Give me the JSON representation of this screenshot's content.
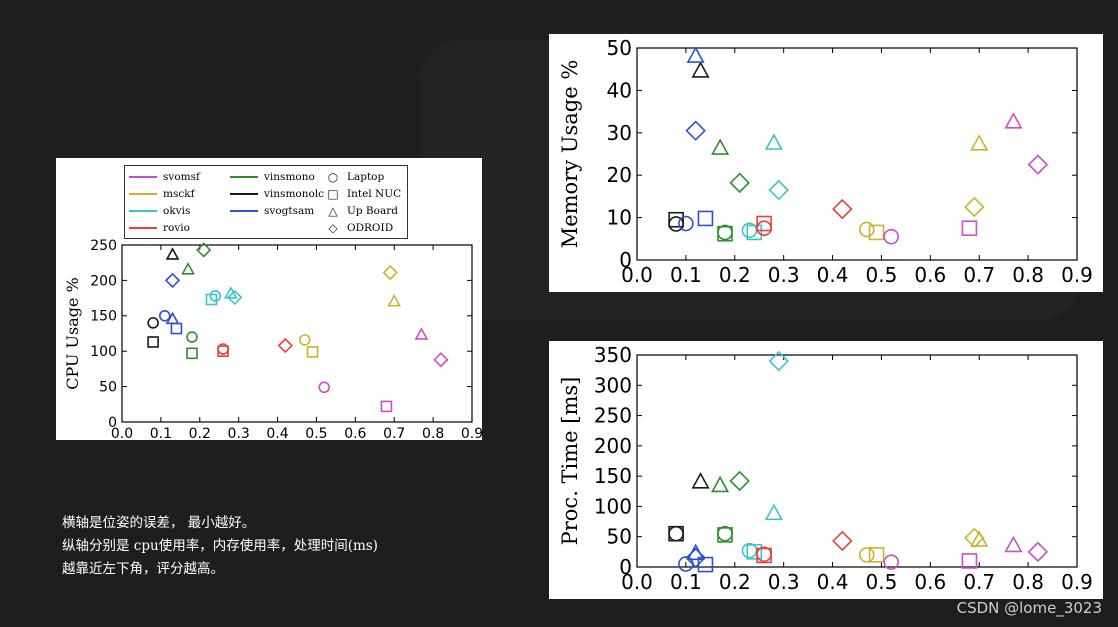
{
  "caption": {
    "line1": "横轴是位姿的误差， 最小越好。",
    "line2": "纵轴分别是 cpu使用率，内存使用率，处理时间(ms)",
    "line3": "越靠近左下角，评分越高。"
  },
  "watermark": "CSDN @lome_3023",
  "legend": {
    "algorithms": [
      {
        "name": "svomsf",
        "color": "#c94fc9"
      },
      {
        "name": "msckf",
        "color": "#c8b42e"
      },
      {
        "name": "okvis",
        "color": "#3cc3c9"
      },
      {
        "name": "rovio",
        "color": "#e6413a"
      },
      {
        "name": "vinsmono",
        "color": "#2e8f2e"
      },
      {
        "name": "vinsmonolc",
        "color": "#1a1a1a"
      },
      {
        "name": "svogtsam",
        "color": "#2f4fd1"
      }
    ],
    "platforms": [
      {
        "name": "Laptop",
        "marker": "circle",
        "symbol": "○"
      },
      {
        "name": "Intel NUC",
        "marker": "square",
        "symbol": "□"
      },
      {
        "name": "Up Board",
        "marker": "triangle",
        "symbol": "△"
      },
      {
        "name": "ODROID",
        "marker": "diamond",
        "symbol": "◇"
      }
    ]
  },
  "chart_data": [
    {
      "type": "scatter",
      "ylabel": "CPU Usage %",
      "xlim": [
        0.0,
        0.9
      ],
      "ylim": [
        0,
        250
      ],
      "xticks": [
        "0.0",
        "0.1",
        "0.2",
        "0.3",
        "0.4",
        "0.5",
        "0.6",
        "0.7",
        "0.8",
        "0.9"
      ],
      "yticks": [
        "0",
        "50",
        "100",
        "150",
        "200",
        "250"
      ],
      "points": [
        {
          "alg": "vinsmonolc",
          "platform": "circle",
          "x": 0.08,
          "y": 140
        },
        {
          "alg": "vinsmonolc",
          "platform": "square",
          "x": 0.08,
          "y": 113
        },
        {
          "alg": "vinsmonolc",
          "platform": "triangle",
          "x": 0.13,
          "y": 236
        },
        {
          "alg": "svogtsam",
          "platform": "circle",
          "x": 0.11,
          "y": 150
        },
        {
          "alg": "svogtsam",
          "platform": "triangle",
          "x": 0.13,
          "y": 145
        },
        {
          "alg": "svogtsam",
          "platform": "square",
          "x": 0.14,
          "y": 132
        },
        {
          "alg": "svogtsam",
          "platform": "diamond",
          "x": 0.13,
          "y": 200
        },
        {
          "alg": "vinsmono",
          "platform": "triangle",
          "x": 0.17,
          "y": 215
        },
        {
          "alg": "vinsmono",
          "platform": "circle",
          "x": 0.18,
          "y": 120
        },
        {
          "alg": "vinsmono",
          "platform": "square",
          "x": 0.18,
          "y": 97
        },
        {
          "alg": "vinsmono",
          "platform": "diamond",
          "x": 0.21,
          "y": 243
        },
        {
          "alg": "okvis",
          "platform": "square",
          "x": 0.23,
          "y": 173
        },
        {
          "alg": "okvis",
          "platform": "circle",
          "x": 0.24,
          "y": 178
        },
        {
          "alg": "okvis",
          "platform": "triangle",
          "x": 0.28,
          "y": 181
        },
        {
          "alg": "okvis",
          "platform": "diamond",
          "x": 0.29,
          "y": 176
        },
        {
          "alg": "rovio",
          "platform": "circle",
          "x": 0.26,
          "y": 103
        },
        {
          "alg": "rovio",
          "platform": "square",
          "x": 0.26,
          "y": 100
        },
        {
          "alg": "rovio",
          "platform": "diamond",
          "x": 0.42,
          "y": 108
        },
        {
          "alg": "msckf",
          "platform": "circle",
          "x": 0.47,
          "y": 116
        },
        {
          "alg": "msckf",
          "platform": "square",
          "x": 0.49,
          "y": 99
        },
        {
          "alg": "msckf",
          "platform": "diamond",
          "x": 0.69,
          "y": 211
        },
        {
          "alg": "msckf",
          "platform": "triangle",
          "x": 0.7,
          "y": 170
        },
        {
          "alg": "svomsf",
          "platform": "circle",
          "x": 0.52,
          "y": 49
        },
        {
          "alg": "svomsf",
          "platform": "square",
          "x": 0.68,
          "y": 22
        },
        {
          "alg": "svomsf",
          "platform": "triangle",
          "x": 0.77,
          "y": 123
        },
        {
          "alg": "svomsf",
          "platform": "diamond",
          "x": 0.82,
          "y": 88
        }
      ]
    },
    {
      "type": "scatter",
      "ylabel": "Memory Usage %",
      "xlim": [
        0.0,
        0.9
      ],
      "ylim": [
        0,
        50
      ],
      "xticks": [
        "0.0",
        "0.1",
        "0.2",
        "0.3",
        "0.4",
        "0.5",
        "0.6",
        "0.7",
        "0.8",
        "0.9"
      ],
      "yticks": [
        "0",
        "10",
        "20",
        "30",
        "40",
        "50"
      ],
      "points": [
        {
          "alg": "vinsmonolc",
          "platform": "square",
          "x": 0.08,
          "y": 9.5
        },
        {
          "alg": "vinsmonolc",
          "platform": "circle",
          "x": 0.08,
          "y": 8.5
        },
        {
          "alg": "vinsmonolc",
          "platform": "triangle",
          "x": 0.13,
          "y": 44.5
        },
        {
          "alg": "svogtsam",
          "platform": "circle",
          "x": 0.1,
          "y": 8.6
        },
        {
          "alg": "svogtsam",
          "platform": "triangle",
          "x": 0.12,
          "y": 48
        },
        {
          "alg": "svogtsam",
          "platform": "diamond",
          "x": 0.12,
          "y": 30.5
        },
        {
          "alg": "svogtsam",
          "platform": "square",
          "x": 0.14,
          "y": 9.8
        },
        {
          "alg": "vinsmono",
          "platform": "triangle",
          "x": 0.17,
          "y": 26.3
        },
        {
          "alg": "vinsmono",
          "platform": "circle",
          "x": 0.18,
          "y": 6.5
        },
        {
          "alg": "vinsmono",
          "platform": "square",
          "x": 0.18,
          "y": 6.2
        },
        {
          "alg": "vinsmono",
          "platform": "diamond",
          "x": 0.21,
          "y": 18.2
        },
        {
          "alg": "okvis",
          "platform": "circle",
          "x": 0.23,
          "y": 7.0
        },
        {
          "alg": "okvis",
          "platform": "square",
          "x": 0.24,
          "y": 6.5
        },
        {
          "alg": "okvis",
          "platform": "triangle",
          "x": 0.28,
          "y": 27.5
        },
        {
          "alg": "okvis",
          "platform": "diamond",
          "x": 0.29,
          "y": 16.5
        },
        {
          "alg": "rovio",
          "platform": "square",
          "x": 0.26,
          "y": 8.6
        },
        {
          "alg": "rovio",
          "platform": "circle",
          "x": 0.26,
          "y": 7.5
        },
        {
          "alg": "rovio",
          "platform": "diamond",
          "x": 0.42,
          "y": 12.0
        },
        {
          "alg": "msckf",
          "platform": "circle",
          "x": 0.47,
          "y": 7.2
        },
        {
          "alg": "msckf",
          "platform": "square",
          "x": 0.49,
          "y": 6.5
        },
        {
          "alg": "msckf",
          "platform": "diamond",
          "x": 0.69,
          "y": 12.5
        },
        {
          "alg": "msckf",
          "platform": "triangle",
          "x": 0.7,
          "y": 27.3
        },
        {
          "alg": "svomsf",
          "platform": "circle",
          "x": 0.52,
          "y": 5.5
        },
        {
          "alg": "svomsf",
          "platform": "square",
          "x": 0.68,
          "y": 7.5
        },
        {
          "alg": "svomsf",
          "platform": "triangle",
          "x": 0.77,
          "y": 32.5
        },
        {
          "alg": "svomsf",
          "platform": "diamond",
          "x": 0.82,
          "y": 22.5
        }
      ]
    },
    {
      "type": "scatter",
      "ylabel": "Proc. Time [ms]",
      "xlim": [
        0.0,
        0.9
      ],
      "ylim": [
        0,
        350
      ],
      "xticks": [
        "0.0",
        "0.1",
        "0.2",
        "0.3",
        "0.4",
        "0.5",
        "0.6",
        "0.7",
        "0.8",
        "0.9"
      ],
      "yticks": [
        "0",
        "50",
        "100",
        "150",
        "200",
        "250",
        "300",
        "350"
      ],
      "points": [
        {
          "alg": "vinsmonolc",
          "platform": "circle",
          "x": 0.08,
          "y": 55
        },
        {
          "alg": "vinsmonolc",
          "platform": "square",
          "x": 0.08,
          "y": 55
        },
        {
          "alg": "vinsmonolc",
          "platform": "triangle",
          "x": 0.13,
          "y": 140
        },
        {
          "alg": "svogtsam",
          "platform": "circle",
          "x": 0.1,
          "y": 5
        },
        {
          "alg": "svogtsam",
          "platform": "triangle",
          "x": 0.12,
          "y": 22
        },
        {
          "alg": "svogtsam",
          "platform": "diamond",
          "x": 0.12,
          "y": 15
        },
        {
          "alg": "svogtsam",
          "platform": "square",
          "x": 0.14,
          "y": 4
        },
        {
          "alg": "vinsmono",
          "platform": "triangle",
          "x": 0.17,
          "y": 134
        },
        {
          "alg": "vinsmono",
          "platform": "circle",
          "x": 0.18,
          "y": 55
        },
        {
          "alg": "vinsmono",
          "platform": "square",
          "x": 0.18,
          "y": 53
        },
        {
          "alg": "vinsmono",
          "platform": "diamond",
          "x": 0.21,
          "y": 142
        },
        {
          "alg": "okvis",
          "platform": "circle",
          "x": 0.23,
          "y": 27
        },
        {
          "alg": "okvis",
          "platform": "square",
          "x": 0.24,
          "y": 25
        },
        {
          "alg": "okvis",
          "platform": "triangle",
          "x": 0.28,
          "y": 88
        },
        {
          "alg": "okvis",
          "platform": "diamond",
          "x": 0.29,
          "y": 340
        },
        {
          "alg": "rovio",
          "platform": "circle",
          "x": 0.26,
          "y": 21
        },
        {
          "alg": "rovio",
          "platform": "square",
          "x": 0.26,
          "y": 19
        },
        {
          "alg": "rovio",
          "platform": "diamond",
          "x": 0.42,
          "y": 43
        },
        {
          "alg": "msckf",
          "platform": "circle",
          "x": 0.47,
          "y": 20
        },
        {
          "alg": "msckf",
          "platform": "square",
          "x": 0.49,
          "y": 20
        },
        {
          "alg": "msckf",
          "platform": "diamond",
          "x": 0.69,
          "y": 48
        },
        {
          "alg": "msckf",
          "platform": "triangle",
          "x": 0.7,
          "y": 44
        },
        {
          "alg": "svomsf",
          "platform": "circle",
          "x": 0.52,
          "y": 8
        },
        {
          "alg": "svomsf",
          "platform": "square",
          "x": 0.68,
          "y": 10
        },
        {
          "alg": "svomsf",
          "platform": "triangle",
          "x": 0.77,
          "y": 35
        },
        {
          "alg": "svomsf",
          "platform": "diamond",
          "x": 0.82,
          "y": 25
        }
      ]
    }
  ]
}
